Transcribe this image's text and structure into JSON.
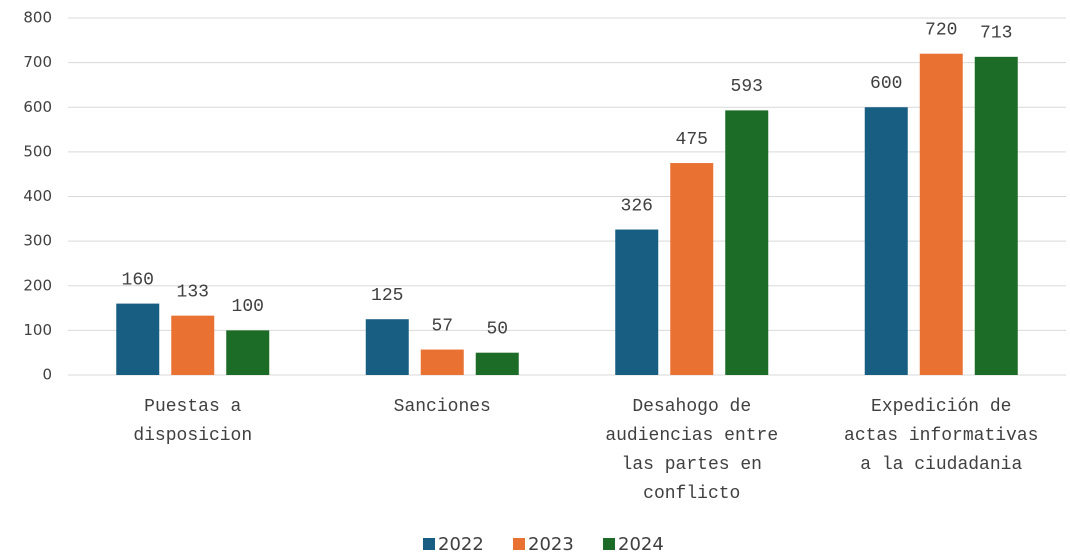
{
  "chart_data": {
    "type": "bar",
    "categories": [
      [
        "Puestas a",
        "disposicion"
      ],
      [
        "Sanciones"
      ],
      [
        "Desahogo de",
        "audiencias entre",
        "las partes en",
        "conflicto"
      ],
      [
        "Expedición de",
        "actas informativas",
        "a la ciudadania"
      ]
    ],
    "series": [
      {
        "name": "2022",
        "color": "#175e82",
        "values": [
          160,
          125,
          326,
          600
        ]
      },
      {
        "name": "2023",
        "color": "#e97132",
        "values": [
          133,
          57,
          475,
          720
        ]
      },
      {
        "name": "2024",
        "color": "#1c6b26",
        "values": [
          100,
          50,
          593,
          713
        ]
      }
    ],
    "ylim": [
      0,
      800
    ],
    "yticks": [
      0,
      100,
      200,
      300,
      400,
      500,
      600,
      700,
      800
    ],
    "grid": true,
    "legend": "bottom"
  }
}
